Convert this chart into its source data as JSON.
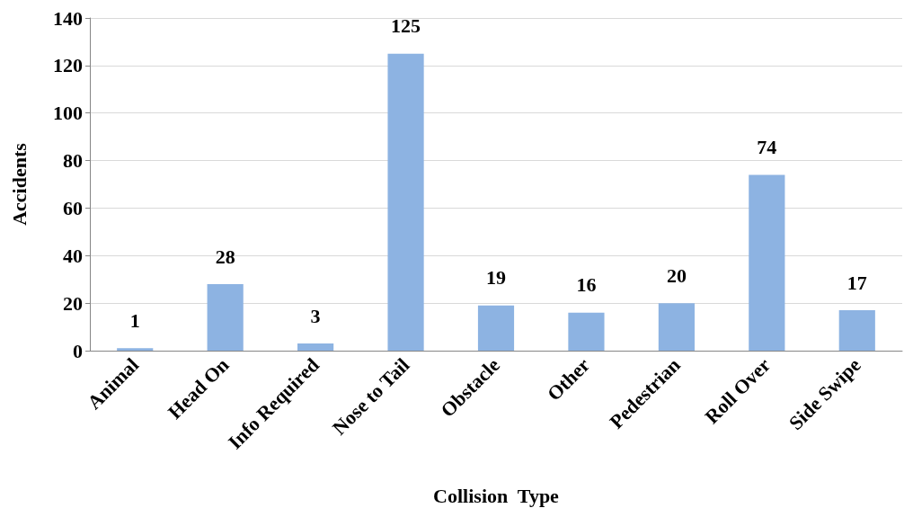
{
  "chart_data": {
    "type": "bar",
    "xlabel": "Collision  Type",
    "ylabel": "Accidents",
    "categories": [
      "Animal",
      "Head On",
      "Info Required",
      "Nose to Tail",
      "Obstacle",
      "Other",
      "Pedestrian",
      "Roll Over",
      "Side Swipe"
    ],
    "values": [
      1,
      28,
      3,
      125,
      19,
      16,
      20,
      74,
      17
    ],
    "color": "#8db3e2",
    "ylim": [
      0,
      140
    ],
    "yticks": [
      0,
      20,
      40,
      60,
      80,
      100,
      120,
      140
    ],
    "grid": "y",
    "data_labels": true
  }
}
